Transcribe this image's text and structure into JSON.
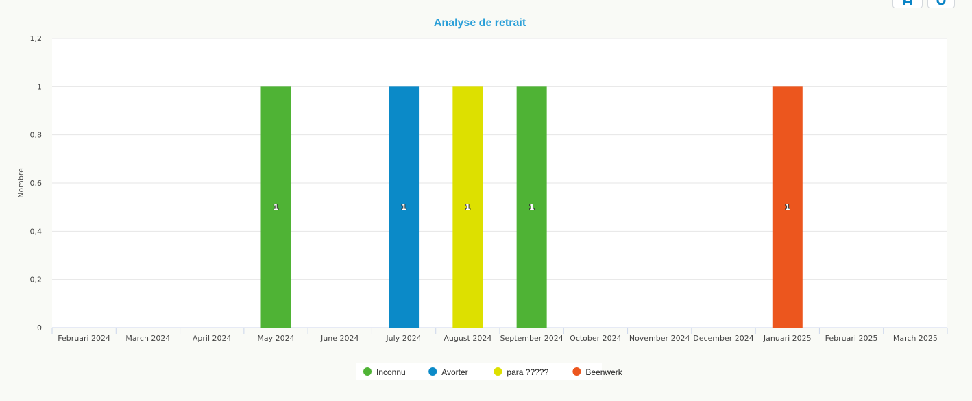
{
  "toolbar": {
    "print_icon": "printer-icon",
    "menu_icon": "menu-icon",
    "accent": "#0b84c6"
  },
  "chart_data": {
    "type": "bar",
    "title": "Analyse de retrait",
    "xlabel": "",
    "ylabel": "Nombre",
    "ylim": [
      0,
      1.2
    ],
    "yticks": [
      "0",
      "0,2",
      "0,4",
      "0,6",
      "0,8",
      "1",
      "1,2"
    ],
    "grid": true,
    "legend_position": "bottom-center",
    "stacked": true,
    "categories": [
      "Februari 2024",
      "March 2024",
      "April 2024",
      "May 2024",
      "June 2024",
      "July 2024",
      "August 2024",
      "September 2024",
      "October 2024",
      "November 2024",
      "December 2024",
      "Januari 2025",
      "Februari 2025",
      "March 2025"
    ],
    "series": [
      {
        "name": "Inconnu",
        "color": "#4fb335",
        "values": [
          0,
          0,
          0,
          1,
          0,
          0,
          0,
          1,
          0,
          0,
          0,
          0,
          0,
          0
        ]
      },
      {
        "name": "Avorter",
        "color": "#0b8ac8",
        "values": [
          0,
          0,
          0,
          0,
          0,
          1,
          0,
          0,
          0,
          0,
          0,
          0,
          0,
          0
        ]
      },
      {
        "name": "para ?????",
        "color": "#dde000",
        "values": [
          0,
          0,
          0,
          0,
          0,
          0,
          1,
          0,
          0,
          0,
          0,
          0,
          0,
          0
        ]
      },
      {
        "name": "Beenwerk",
        "color": "#ec561e",
        "values": [
          0,
          0,
          0,
          0,
          0,
          0,
          0,
          0,
          0,
          0,
          0,
          1,
          0,
          0
        ]
      }
    ],
    "data_labels": [
      "1"
    ]
  }
}
